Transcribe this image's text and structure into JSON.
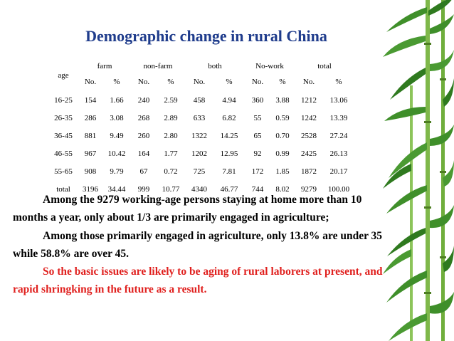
{
  "slide": {
    "title": "Demographic change in rural China"
  },
  "table": {
    "age_label": "age",
    "groups": [
      "farm",
      "non-farm",
      "both",
      "No-work",
      "total"
    ],
    "sub_headers": [
      "No.",
      "%",
      "No.",
      "%",
      "No.",
      "%",
      "No.",
      "%",
      "No.",
      "%"
    ],
    "rows": [
      [
        "16-25",
        "154",
        "1.66",
        "240",
        "2.59",
        "458",
        "4.94",
        "360",
        "3.88",
        "1212",
        "13.06"
      ],
      [
        "26-35",
        "286",
        "3.08",
        "268",
        "2.89",
        "633",
        "6.82",
        "55",
        "0.59",
        "1242",
        "13.39"
      ],
      [
        "36-45",
        "881",
        "9.49",
        "260",
        "2.80",
        "1322",
        "14.25",
        "65",
        "0.70",
        "2528",
        "27.24"
      ],
      [
        "46-55",
        "967",
        "10.42",
        "164",
        "1.77",
        "1202",
        "12.95",
        "92",
        "0.99",
        "2425",
        "26.13"
      ],
      [
        "55-65",
        "908",
        "9.79",
        "67",
        "0.72",
        "725",
        "7.81",
        "172",
        "1.85",
        "1872",
        "20.17"
      ],
      [
        "total",
        "3196",
        "34.44",
        "999",
        "10.77",
        "4340",
        "46.77",
        "744",
        "8.02",
        "9279",
        "100.00"
      ]
    ]
  },
  "paragraphs": [
    {
      "text": "Among the 9279 working-age persons staying at home more than 10 months a year, only about 1/3 are primarily engaged in agriculture;",
      "color": "#000000"
    },
    {
      "text": "Among those primarily engaged in agriculture, only 13.8% are under 35 while 58.8% are over 45.",
      "color": "#000000"
    },
    {
      "text": "So the basic issues are likely to be aging of rural laborers at present, and rapid shringking in the future as a result.",
      "color": "#e0201e"
    }
  ],
  "colors": {
    "title": "#1f3c8c",
    "highlight": "#e0201e",
    "bamboo_leaf": "#3f8f2a",
    "bamboo_stem": "#6fae3c"
  }
}
